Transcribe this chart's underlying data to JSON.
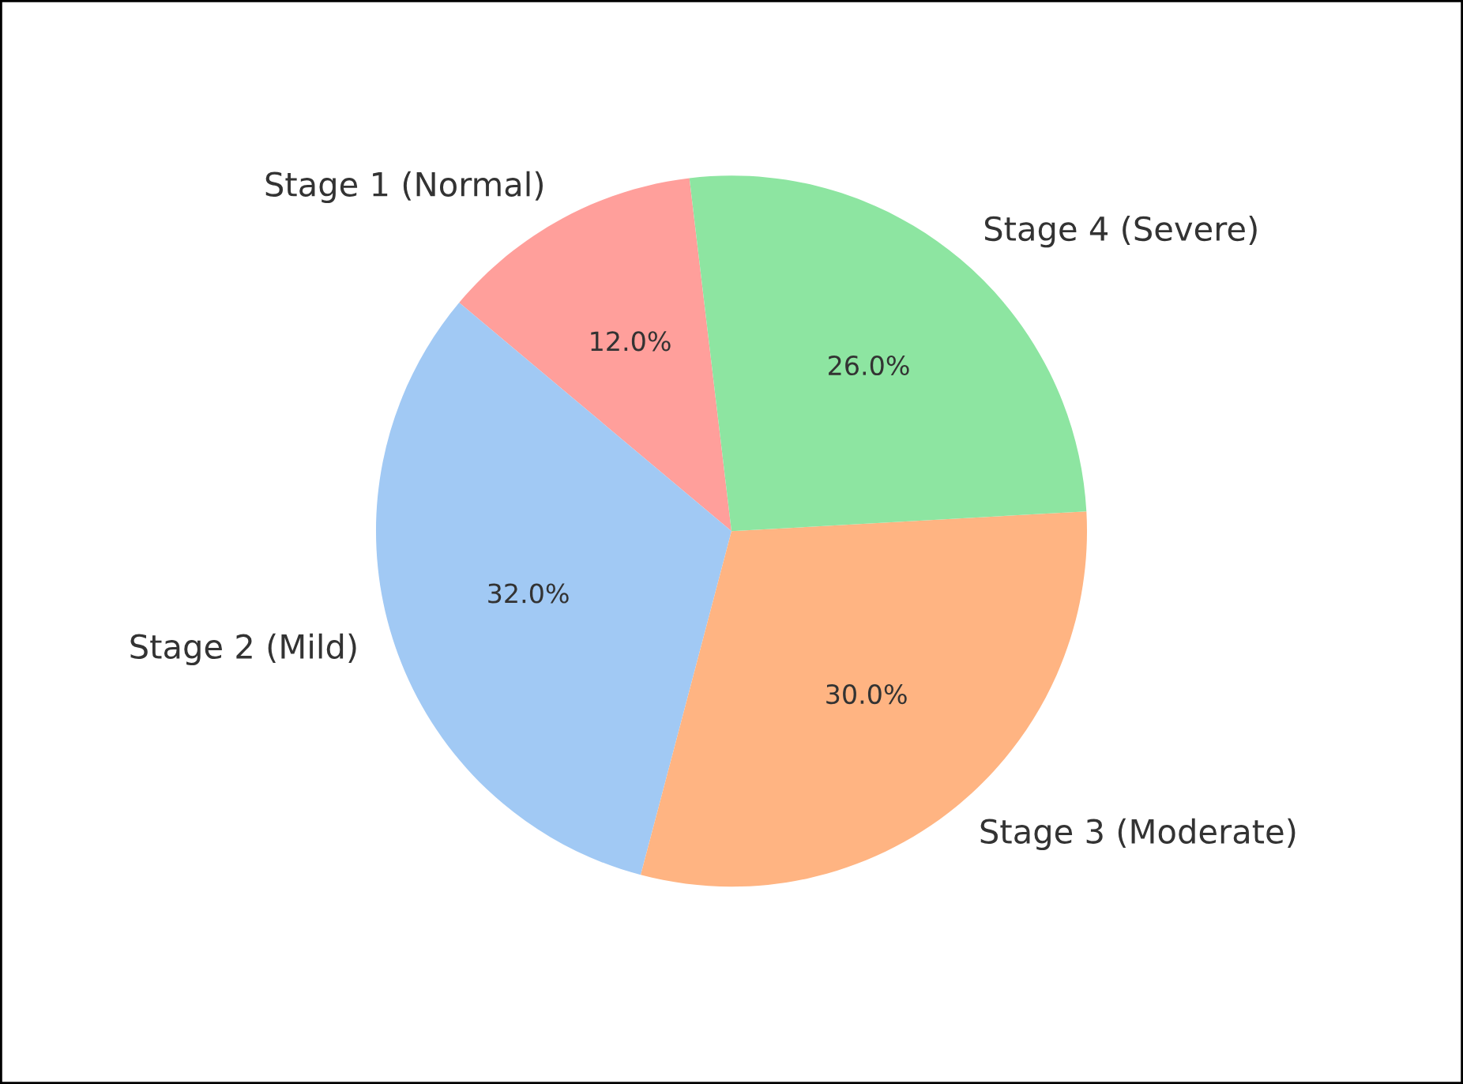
{
  "chart_data": {
    "type": "pie",
    "categories": [
      "Stage 1 (Normal)",
      "Stage 2 (Mild)",
      "Stage 3 (Moderate)",
      "Stage 4 (Severe)"
    ],
    "values": [
      12,
      32,
      30,
      26
    ],
    "colors": [
      "#ff9f9b",
      "#a1c9f4",
      "#ffb482",
      "#8de5a1"
    ],
    "value_labels": [
      "12.0%",
      "32.0%",
      "30.0%",
      "26.0%"
    ]
  }
}
